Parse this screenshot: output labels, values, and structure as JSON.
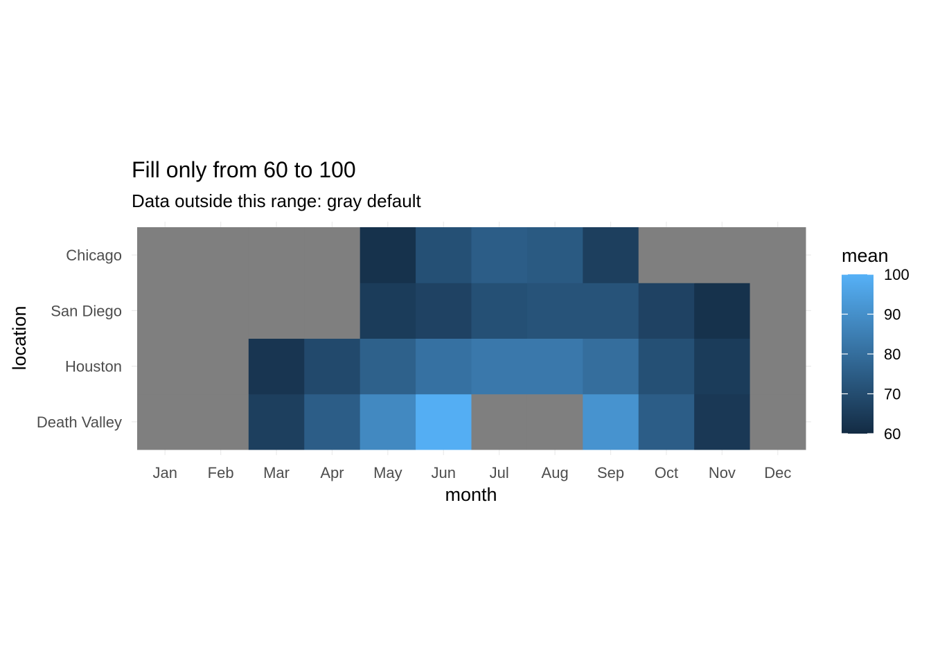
{
  "chart_data": {
    "type": "heatmap",
    "title": "Fill only from 60 to 100",
    "subtitle": "Data outside this range: gray default",
    "xlabel": "month",
    "ylabel": "location",
    "x_categories": [
      "Jan",
      "Feb",
      "Mar",
      "Apr",
      "May",
      "Jun",
      "Jul",
      "Aug",
      "Sep",
      "Oct",
      "Nov",
      "Dec"
    ],
    "y_categories": [
      "Death Valley",
      "Houston",
      "San Diego",
      "Chicago"
    ],
    "fill_limits": [
      60,
      100
    ],
    "na_color": "#7f7f7f",
    "low_color": "#132b43",
    "high_color": "#56b1f7",
    "values": [
      [
        null,
        null,
        66,
        75,
        88,
        99,
        null,
        null,
        91,
        75,
        64,
        null
      ],
      [
        null,
        null,
        63,
        69,
        76,
        81,
        83,
        83,
        80,
        71,
        65,
        null
      ],
      [
        null,
        null,
        null,
        null,
        65,
        67,
        71,
        72,
        72,
        67,
        62,
        null
      ],
      [
        null,
        null,
        null,
        null,
        62,
        71,
        75,
        74,
        66,
        null,
        null,
        null
      ]
    ],
    "legend": {
      "title": "mean",
      "breaks": [
        100,
        90,
        80,
        70,
        60
      ],
      "labels": [
        "100",
        "90",
        "80",
        "70",
        "60"
      ],
      "position": "right"
    },
    "grid": true
  }
}
